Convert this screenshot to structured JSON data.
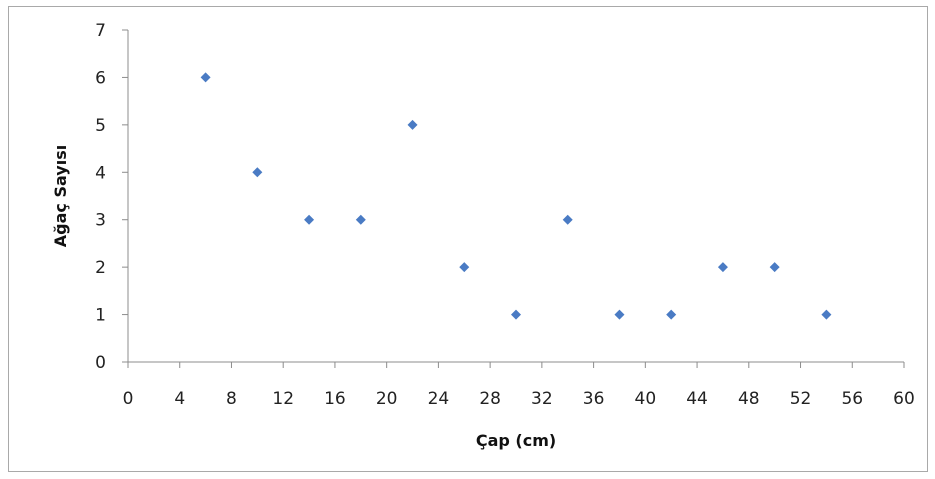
{
  "chart_data": {
    "type": "scatter",
    "title": "",
    "xlabel": "Çap (cm)",
    "ylabel": "Ağaç Sayısı",
    "xlim": [
      0,
      60
    ],
    "ylim": [
      0,
      7
    ],
    "x_ticks": [
      "0",
      "4",
      "8",
      "12",
      "16",
      "20",
      "24",
      "28",
      "32",
      "36",
      "40",
      "44",
      "48",
      "52",
      "56",
      "60"
    ],
    "y_ticks": [
      "0",
      "1",
      "2",
      "3",
      "4",
      "5",
      "6",
      "7"
    ],
    "grid": false,
    "legend": "none",
    "marker": "diamond",
    "marker_color": "#4a7bc4",
    "points": [
      {
        "x": 6,
        "y": 6
      },
      {
        "x": 10,
        "y": 4
      },
      {
        "x": 14,
        "y": 3
      },
      {
        "x": 18,
        "y": 3
      },
      {
        "x": 22,
        "y": 5
      },
      {
        "x": 26,
        "y": 2
      },
      {
        "x": 30,
        "y": 1
      },
      {
        "x": 34,
        "y": 3
      },
      {
        "x": 38,
        "y": 1
      },
      {
        "x": 42,
        "y": 1
      },
      {
        "x": 46,
        "y": 2
      },
      {
        "x": 50,
        "y": 2
      },
      {
        "x": 54,
        "y": 1
      }
    ]
  }
}
